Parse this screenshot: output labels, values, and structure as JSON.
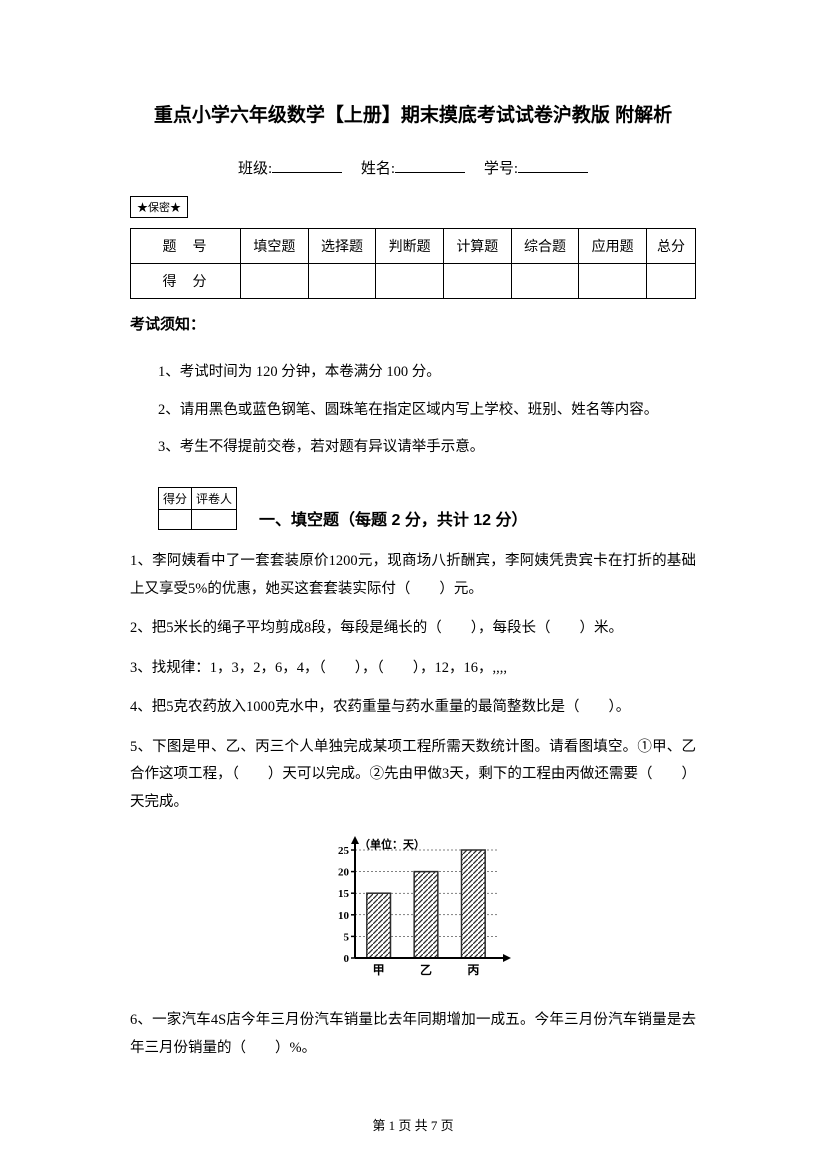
{
  "title": "重点小学六年级数学【上册】期末摸底考试试卷沪教版 附解析",
  "info": {
    "class_label": "班级:",
    "name_label": "姓名:",
    "id_label": "学号:"
  },
  "secret_label": "★保密★",
  "score_table": {
    "header_row_label": "题号",
    "score_row_label": "得分",
    "columns": [
      "填空题",
      "选择题",
      "判断题",
      "计算题",
      "综合题",
      "应用题",
      "总分"
    ]
  },
  "exam_notice_title": "考试须知：",
  "instructions": [
    "1、考试时间为 120 分钟，本卷满分 100 分。",
    "2、请用黑色或蓝色钢笔、圆珠笔在指定区域内写上学校、班别、姓名等内容。",
    "3、考生不得提前交卷，若对题有异议请举手示意。"
  ],
  "mini_table": {
    "c1": "得分",
    "c2": "评卷人"
  },
  "section1_title": "一、填空题（每题 2 分，共计 12 分）",
  "questions": [
    "1、李阿姨看中了一套套装原价1200元，现商场八折酬宾，李阿姨凭贵宾卡在打折的基础上又享受5%的优惠，她买这套套装实际付（　　）元。",
    "2、把5米长的绳子平均剪成8段，每段是绳长的（　　），每段长（　　）米。",
    "3、找规律：1，3，2，6，4，（　　），（　　），12，16，,,,,",
    "4、把5克农药放入1000克水中，农药重量与药水重量的最简整数比是（　　）。",
    "5、下图是甲、乙、丙三个人单独完成某项工程所需天数统计图。请看图填空。①甲、乙合作这项工程，（　　）天可以完成。②先由甲做3天，剩下的工程由丙做还需要（　　）天完成。",
    "6、一家汽车4S店今年三月份汽车销量比去年同期增加一成五。今年三月份汽车销量是去年三月份销量的（　　）%。"
  ],
  "chart": {
    "type": "bar",
    "unit_label": "（单位：天）",
    "categories": [
      "甲",
      "乙",
      "丙"
    ],
    "values": [
      15,
      20,
      25
    ],
    "ylim": [
      0,
      25
    ],
    "ytick_step": 5,
    "yticks": [
      0,
      5,
      10,
      15,
      20,
      25
    ],
    "bar_fill": "#2b2b2b",
    "bar_hatch": true,
    "axis_color": "#000000",
    "background_color": "#ffffff",
    "bar_width_ratio": 0.5,
    "font_size": 11
  },
  "footer": "第 1 页 共 7 页"
}
